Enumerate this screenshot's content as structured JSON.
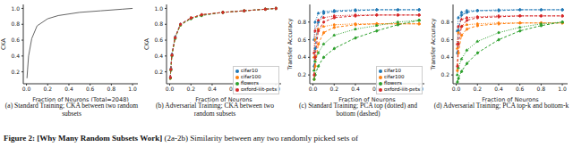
{
  "chart_data": [
    {
      "type": "line",
      "subtitle": "(a) Standard Training; CKA between two random subsets",
      "x_label": "Fraction of Neurons (Total=2048)",
      "y_label": "CKA",
      "x": [
        0.005,
        0.01,
        0.02,
        0.05,
        0.1,
        0.2,
        0.3,
        0.5,
        0.7,
        0.9,
        1.0
      ],
      "xlim": [
        -0.03,
        1.05
      ],
      "xticks": [
        {
          "value": 0,
          "label": "0.0"
        },
        0.2,
        0.4,
        0.6,
        0.8,
        {
          "value": 1,
          "label": "1.0"
        }
      ],
      "ylim": [
        0.05,
        1.05
      ],
      "yticks": [
        0.2,
        0.4,
        0.6,
        0.8,
        {
          "value": 1,
          "label": "1.0"
        }
      ],
      "series": [
        {
          "color": "#666666",
          "line_style": "solid",
          "values": [
            0.12,
            0.22,
            0.4,
            0.62,
            0.78,
            0.87,
            0.91,
            0.95,
            0.97,
            0.99,
            1.0
          ]
        }
      ]
    },
    {
      "type": "line",
      "subtitle": "(b) Adversarial Training; CKA between two random subsets",
      "x_label": "Fraction of Neurons",
      "y_label": "CKA",
      "legend": "lower right",
      "x": [
        0.005,
        0.01,
        0.02,
        0.05,
        0.1,
        0.2,
        0.3,
        0.5,
        0.7,
        0.9,
        1.0
      ],
      "xlim": [
        -0.03,
        1.05
      ],
      "xticks": [
        {
          "value": 0,
          "label": "0.0"
        },
        0.2,
        0.4,
        0.6,
        0.8,
        {
          "value": 1,
          "label": "1.0"
        }
      ],
      "ylim": [
        0.05,
        1.05
      ],
      "yticks": [
        0.2,
        0.4,
        0.6,
        0.8,
        {
          "value": 1,
          "label": "1.0"
        }
      ],
      "series": [
        {
          "name": "cifar10",
          "color": "#1f77b4",
          "marker": "circle",
          "line_style": "dashed",
          "values": [
            0.13,
            0.24,
            0.42,
            0.64,
            0.8,
            0.88,
            0.92,
            0.95,
            0.97,
            0.99,
            1.0
          ]
        },
        {
          "name": "cifar100",
          "color": "#ff7f0e",
          "marker": "circle",
          "line_style": "dashed",
          "values": [
            0.12,
            0.23,
            0.41,
            0.63,
            0.79,
            0.88,
            0.92,
            0.95,
            0.97,
            0.99,
            1.0
          ]
        },
        {
          "name": "flowers",
          "color": "#2ca02c",
          "marker": "circle",
          "line_style": "dashed",
          "values": [
            0.12,
            0.22,
            0.4,
            0.62,
            0.79,
            0.87,
            0.91,
            0.95,
            0.97,
            0.99,
            1.0
          ]
        },
        {
          "name": "oxford-iiit-pets",
          "color": "#d62728",
          "marker": "circle",
          "line_style": "dashed",
          "values": [
            0.13,
            0.23,
            0.41,
            0.63,
            0.8,
            0.88,
            0.92,
            0.95,
            0.97,
            0.99,
            1.0
          ]
        }
      ]
    },
    {
      "type": "line",
      "subtitle": "(c) Standard Training; PCA top (dotted) and bottom (dashed)",
      "x_label": "Fraction of Neurons",
      "y_label": "Transfer Accuracy",
      "legend": "lower right",
      "x": [
        0.01,
        0.02,
        0.05,
        0.1,
        0.2,
        0.4,
        0.6,
        0.8,
        1.0
      ],
      "xlim": [
        -0.03,
        1.05
      ],
      "xticks": [
        {
          "value": 0,
          "label": "0.0"
        },
        0.2,
        0.4,
        0.6,
        0.8,
        {
          "value": 1,
          "label": "1.0"
        }
      ],
      "ylim": [
        0.1,
        1.0
      ],
      "yticks": [
        0.2,
        0.4,
        0.6,
        0.8
      ],
      "series": [
        {
          "name": "cifar10",
          "color": "#1f77b4",
          "marker": "circle",
          "line_style": "dotted",
          "values": [
            0.6,
            0.8,
            0.9,
            0.92,
            0.93,
            0.94,
            0.94,
            0.94,
            0.94
          ]
        },
        {
          "name": "cifar10",
          "color": "#1f77b4",
          "marker": "circle",
          "line_style": "dashed",
          "values": [
            0.3,
            0.5,
            0.8,
            0.9,
            0.92,
            0.93,
            0.94,
            0.94,
            0.94
          ]
        },
        {
          "name": "cifar100",
          "color": "#ff7f0e",
          "marker": "circle",
          "line_style": "dotted",
          "values": [
            0.4,
            0.6,
            0.72,
            0.75,
            0.77,
            0.78,
            0.78,
            0.78,
            0.78
          ]
        },
        {
          "name": "cifar100",
          "color": "#ff7f0e",
          "marker": "circle",
          "line_style": "dashed",
          "values": [
            0.15,
            0.3,
            0.55,
            0.68,
            0.74,
            0.77,
            0.78,
            0.78,
            0.78
          ]
        },
        {
          "name": "flowers",
          "color": "#2ca02c",
          "marker": "circle",
          "line_style": "dotted",
          "values": [
            0.25,
            0.35,
            0.45,
            0.55,
            0.65,
            0.72,
            0.76,
            0.8,
            0.82
          ]
        },
        {
          "name": "flowers",
          "color": "#2ca02c",
          "marker": "circle",
          "line_style": "dashed",
          "values": [
            0.15,
            0.2,
            0.3,
            0.4,
            0.5,
            0.62,
            0.7,
            0.77,
            0.82
          ]
        },
        {
          "name": "oxford-iiit-pets",
          "color": "#d62728",
          "marker": "circle",
          "line_style": "dotted",
          "values": [
            0.45,
            0.7,
            0.82,
            0.85,
            0.87,
            0.88,
            0.88,
            0.88,
            0.88
          ]
        },
        {
          "name": "oxford-iiit-pets",
          "color": "#d62728",
          "marker": "circle",
          "line_style": "dashed",
          "values": [
            0.2,
            0.4,
            0.7,
            0.8,
            0.85,
            0.87,
            0.88,
            0.88,
            0.88
          ]
        }
      ]
    },
    {
      "type": "line",
      "subtitle": "(d) Adversarial Training; PCA top-k and bottom-k",
      "x_label": "Fraction of Neurons",
      "y_label": "Transfer Accuracy",
      "x": [
        0.01,
        0.02,
        0.05,
        0.1,
        0.2,
        0.4,
        0.6,
        0.8,
        1.0
      ],
      "xlim": [
        -0.03,
        1.05
      ],
      "xticks": [
        {
          "value": 0,
          "label": "0.0"
        },
        0.2,
        0.4,
        0.6,
        0.8,
        {
          "value": 1,
          "label": "1.0"
        }
      ],
      "ylim": [
        0.1,
        1.0
      ],
      "yticks": [
        0.2,
        0.4,
        0.6,
        0.8
      ],
      "series": [
        {
          "name": "cifar10",
          "color": "#1f77b4",
          "marker": "circle",
          "line_style": "dotted",
          "values": [
            0.7,
            0.85,
            0.91,
            0.93,
            0.93,
            0.94,
            0.94,
            0.94,
            0.94
          ]
        },
        {
          "name": "cifar10",
          "color": "#1f77b4",
          "marker": "circle",
          "line_style": "dashed",
          "values": [
            0.45,
            0.7,
            0.88,
            0.91,
            0.93,
            0.93,
            0.94,
            0.94,
            0.94
          ]
        },
        {
          "name": "cifar100",
          "color": "#ff7f0e",
          "marker": "circle",
          "line_style": "dotted",
          "values": [
            0.5,
            0.68,
            0.75,
            0.77,
            0.78,
            0.79,
            0.79,
            0.79,
            0.79
          ]
        },
        {
          "name": "cifar100",
          "color": "#ff7f0e",
          "marker": "circle",
          "line_style": "dashed",
          "values": [
            0.25,
            0.45,
            0.65,
            0.72,
            0.76,
            0.78,
            0.79,
            0.79,
            0.79
          ]
        },
        {
          "name": "flowers",
          "color": "#2ca02c",
          "marker": "circle",
          "line_style": "dotted",
          "values": [
            0.2,
            0.28,
            0.38,
            0.48,
            0.58,
            0.68,
            0.74,
            0.78,
            0.8
          ]
        },
        {
          "name": "flowers",
          "color": "#2ca02c",
          "marker": "circle",
          "line_style": "dashed",
          "values": [
            0.12,
            0.16,
            0.24,
            0.33,
            0.45,
            0.6,
            0.7,
            0.76,
            0.8
          ]
        },
        {
          "name": "oxford-iiit-pets",
          "color": "#d62728",
          "marker": "circle",
          "line_style": "dotted",
          "values": [
            0.55,
            0.75,
            0.83,
            0.85,
            0.86,
            0.87,
            0.87,
            0.87,
            0.87
          ]
        },
        {
          "name": "oxford-iiit-pets",
          "color": "#d62728",
          "marker": "circle",
          "line_style": "dashed",
          "values": [
            0.3,
            0.55,
            0.75,
            0.82,
            0.85,
            0.86,
            0.87,
            0.87,
            0.87
          ]
        }
      ]
    }
  ],
  "caption_label": "Figure 2:",
  "caption_title": "[Why Many Random Subsets Work]",
  "caption_text": "(2a-2b) Similarity between any two randomly picked sets of"
}
